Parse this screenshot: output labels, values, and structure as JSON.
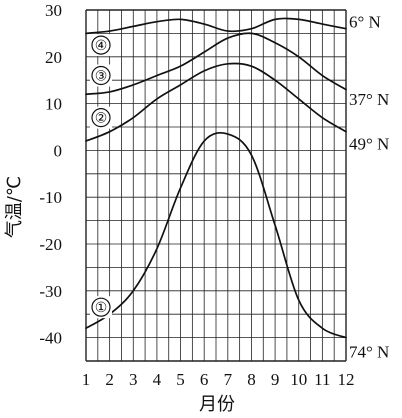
{
  "chart_data": {
    "type": "line",
    "title": "",
    "xlabel": "月份",
    "ylabel": "气温/℃",
    "x": [
      1,
      2,
      3,
      4,
      5,
      6,
      7,
      8,
      9,
      10,
      11,
      12
    ],
    "x_ticks": [
      "1",
      "2",
      "3",
      "4",
      "5",
      "6",
      "7",
      "8",
      "9",
      "10",
      "11",
      "12"
    ],
    "xlim": [
      1,
      12
    ],
    "ylim": [
      -45,
      30
    ],
    "y_ticks": [
      "30",
      "20",
      "10",
      "0",
      "-10",
      "-20",
      "-30",
      "-40"
    ],
    "y_tick_values": [
      30,
      20,
      10,
      0,
      -10,
      -20,
      -30,
      -40
    ],
    "grid": true,
    "legend": "none",
    "series": [
      {
        "id": "①",
        "latitude": "74° N",
        "values": [
          -38,
          -35,
          -30,
          -21,
          -8,
          2,
          3.5,
          -1,
          -16,
          -32,
          -38,
          -40
        ]
      },
      {
        "id": "②",
        "latitude": "49° N",
        "values": [
          2,
          4,
          7,
          11,
          14,
          17,
          18.5,
          18,
          15,
          11,
          7,
          4
        ]
      },
      {
        "id": "③",
        "latitude": "37° N",
        "values": [
          12,
          12.5,
          14,
          16,
          18,
          21,
          24,
          25,
          23,
          20,
          16,
          13
        ]
      },
      {
        "id": "④",
        "latitude": "6° N",
        "values": [
          25,
          25.5,
          26.5,
          27.5,
          28,
          27,
          25.5,
          26,
          28,
          28,
          27,
          26
        ]
      }
    ]
  }
}
